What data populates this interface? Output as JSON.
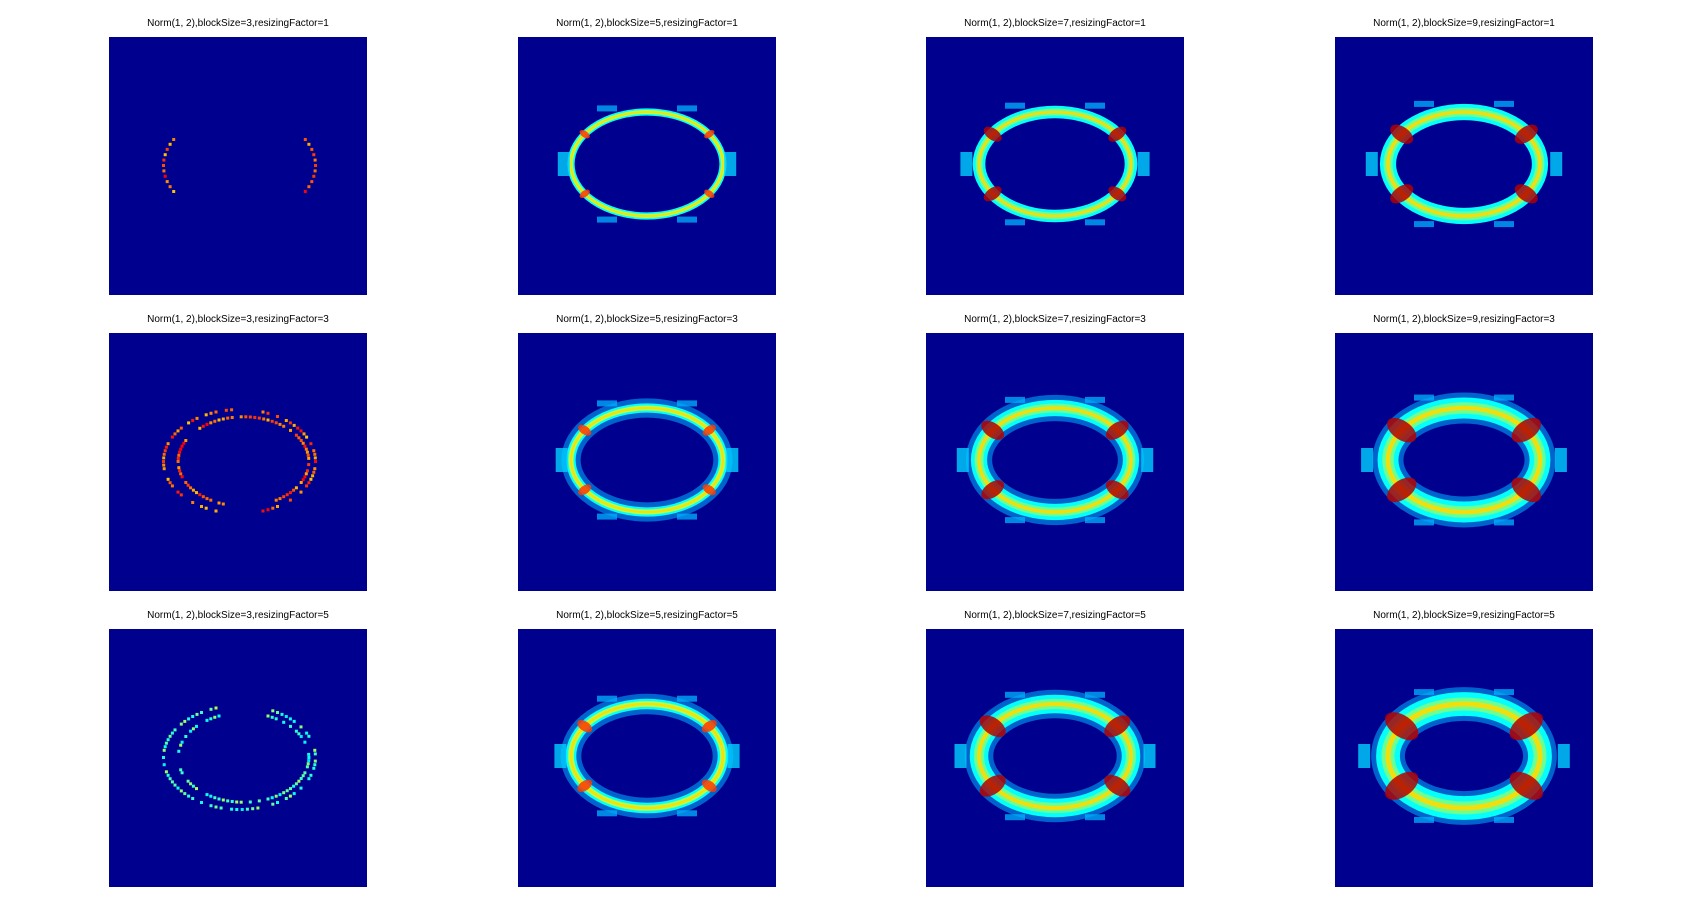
{
  "figure": {
    "background": "#ffffff",
    "plot_background": "#00008f"
  },
  "chart_data": [
    {
      "type": "heatmap",
      "title": "Norm(1, 2),blockSize=3,resizingFactor=1",
      "block_size": 3,
      "resizing_factor": 1
    },
    {
      "type": "heatmap",
      "title": "Norm(1, 2),blockSize=5,resizingFactor=1",
      "block_size": 5,
      "resizing_factor": 1
    },
    {
      "type": "heatmap",
      "title": "Norm(1, 2),blockSize=7,resizingFactor=1",
      "block_size": 7,
      "resizing_factor": 1
    },
    {
      "type": "heatmap",
      "title": "Norm(1, 2),blockSize=9,resizingFactor=1",
      "block_size": 9,
      "resizing_factor": 1
    },
    {
      "type": "heatmap",
      "title": "Norm(1, 2),blockSize=3,resizingFactor=3",
      "block_size": 3,
      "resizing_factor": 3
    },
    {
      "type": "heatmap",
      "title": "Norm(1, 2),blockSize=5,resizingFactor=3",
      "block_size": 5,
      "resizing_factor": 3
    },
    {
      "type": "heatmap",
      "title": "Norm(1, 2),blockSize=7,resizingFactor=3",
      "block_size": 7,
      "resizing_factor": 3
    },
    {
      "type": "heatmap",
      "title": "Norm(1, 2),blockSize=9,resizingFactor=3",
      "block_size": 9,
      "resizing_factor": 3
    },
    {
      "type": "heatmap",
      "title": "Norm(1, 2),blockSize=3,resizingFactor=5",
      "block_size": 3,
      "resizing_factor": 5
    },
    {
      "type": "heatmap",
      "title": "Norm(1, 2),blockSize=5,resizingFactor=5",
      "block_size": 5,
      "resizing_factor": 5
    },
    {
      "type": "heatmap",
      "title": "Norm(1, 2),blockSize=7,resizingFactor=5",
      "block_size": 7,
      "resizing_factor": 5
    },
    {
      "type": "heatmap",
      "title": "Norm(1, 2),blockSize=9,resizingFactor=5",
      "block_size": 9,
      "resizing_factor": 5
    }
  ]
}
